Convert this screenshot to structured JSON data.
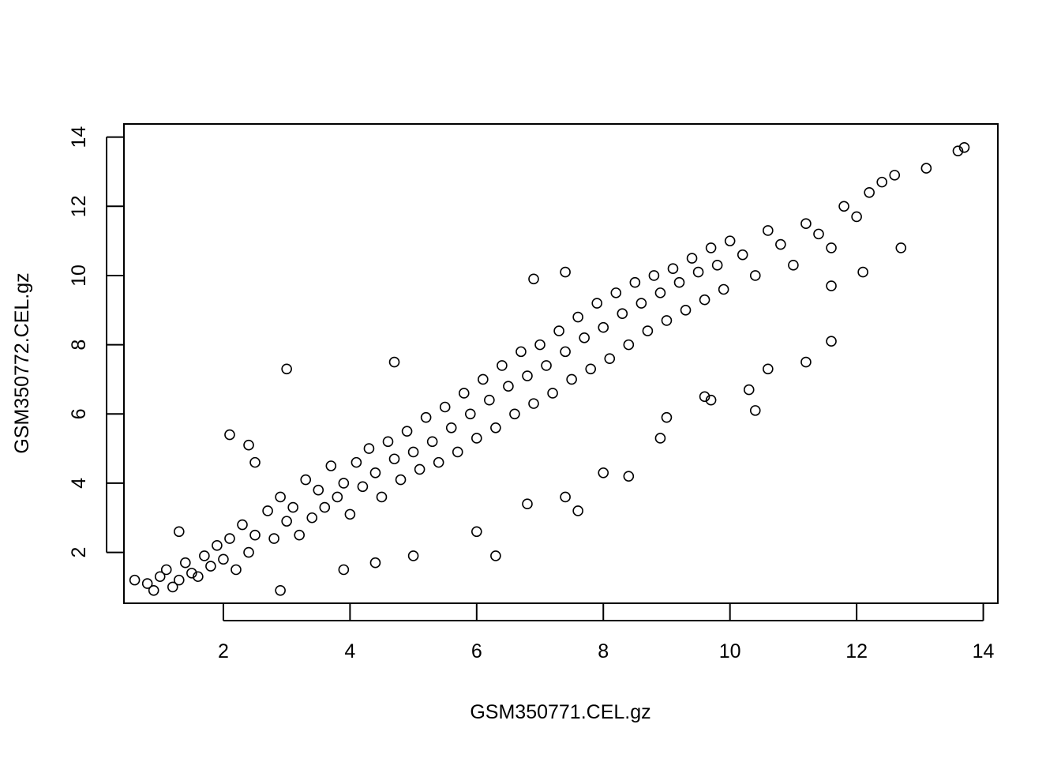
{
  "chart_data": {
    "type": "scatter",
    "title": "",
    "xlabel": "GSM350771.CEL.gz",
    "ylabel": "GSM350772.CEL.gz",
    "xlim": [
      0.43,
      14.23
    ],
    "ylim": [
      0.53,
      14.38
    ],
    "xticks": [
      2,
      4,
      6,
      8,
      10,
      12,
      14
    ],
    "yticks": [
      2,
      4,
      6,
      8,
      10,
      12,
      14
    ],
    "marker": "open-circle",
    "grid": false,
    "points_description": "dense cloud of several thousand expression values along the diagonal; listed points are representative samples",
    "points": [
      [
        0.6,
        1.2
      ],
      [
        0.8,
        1.1
      ],
      [
        0.9,
        0.9
      ],
      [
        1.0,
        1.3
      ],
      [
        1.2,
        1.0
      ],
      [
        1.1,
        1.5
      ],
      [
        1.3,
        1.2
      ],
      [
        1.4,
        1.7
      ],
      [
        1.5,
        1.4
      ],
      [
        1.6,
        1.3
      ],
      [
        1.3,
        2.6
      ],
      [
        1.7,
        1.9
      ],
      [
        1.8,
        1.6
      ],
      [
        1.9,
        2.2
      ],
      [
        2.0,
        1.8
      ],
      [
        2.1,
        2.4
      ],
      [
        2.2,
        1.5
      ],
      [
        2.3,
        2.8
      ],
      [
        2.4,
        2.0
      ],
      [
        2.5,
        2.5
      ],
      [
        2.1,
        5.4
      ],
      [
        2.4,
        5.1
      ],
      [
        2.5,
        4.6
      ],
      [
        2.7,
        3.2
      ],
      [
        2.8,
        2.4
      ],
      [
        2.9,
        3.6
      ],
      [
        3.0,
        2.9
      ],
      [
        3.1,
        3.3
      ],
      [
        3.2,
        2.5
      ],
      [
        3.3,
        4.1
      ],
      [
        3.4,
        3.0
      ],
      [
        3.5,
        3.8
      ],
      [
        3.6,
        3.3
      ],
      [
        3.7,
        4.5
      ],
      [
        3.8,
        3.6
      ],
      [
        3.9,
        4.0
      ],
      [
        4.0,
        3.1
      ],
      [
        4.1,
        4.6
      ],
      [
        4.2,
        3.9
      ],
      [
        4.3,
        5.0
      ],
      [
        4.4,
        4.3
      ],
      [
        4.5,
        3.6
      ],
      [
        4.6,
        5.2
      ],
      [
        4.7,
        4.7
      ],
      [
        4.8,
        4.1
      ],
      [
        4.9,
        5.5
      ],
      [
        5.0,
        4.9
      ],
      [
        5.1,
        4.4
      ],
      [
        5.2,
        5.9
      ],
      [
        5.3,
        5.2
      ],
      [
        5.4,
        4.6
      ],
      [
        5.5,
        6.2
      ],
      [
        5.6,
        5.6
      ],
      [
        5.7,
        4.9
      ],
      [
        5.8,
        6.6
      ],
      [
        5.9,
        6.0
      ],
      [
        6.0,
        5.3
      ],
      [
        6.1,
        7.0
      ],
      [
        6.2,
        6.4
      ],
      [
        6.3,
        5.6
      ],
      [
        6.4,
        7.4
      ],
      [
        6.5,
        6.8
      ],
      [
        6.6,
        6.0
      ],
      [
        6.7,
        7.8
      ],
      [
        6.8,
        7.1
      ],
      [
        6.9,
        6.3
      ],
      [
        7.0,
        8.0
      ],
      [
        7.1,
        7.4
      ],
      [
        7.2,
        6.6
      ],
      [
        7.3,
        8.4
      ],
      [
        7.4,
        7.8
      ],
      [
        7.5,
        7.0
      ],
      [
        7.6,
        8.8
      ],
      [
        7.7,
        8.2
      ],
      [
        7.8,
        7.3
      ],
      [
        7.9,
        9.2
      ],
      [
        8.0,
        8.5
      ],
      [
        8.1,
        7.6
      ],
      [
        8.2,
        9.5
      ],
      [
        8.3,
        8.9
      ],
      [
        8.4,
        8.0
      ],
      [
        8.5,
        9.8
      ],
      [
        8.6,
        9.2
      ],
      [
        8.7,
        8.4
      ],
      [
        8.8,
        10.0
      ],
      [
        8.9,
        9.5
      ],
      [
        9.0,
        8.7
      ],
      [
        9.1,
        10.2
      ],
      [
        9.2,
        9.8
      ],
      [
        9.3,
        9.0
      ],
      [
        9.4,
        10.5
      ],
      [
        9.5,
        10.1
      ],
      [
        9.6,
        9.3
      ],
      [
        9.7,
        10.8
      ],
      [
        9.8,
        10.3
      ],
      [
        9.9,
        9.6
      ],
      [
        10.0,
        11.0
      ],
      [
        10.2,
        10.6
      ],
      [
        10.4,
        10.0
      ],
      [
        10.6,
        11.3
      ],
      [
        10.8,
        10.9
      ],
      [
        11.0,
        10.3
      ],
      [
        11.2,
        11.5
      ],
      [
        11.4,
        11.2
      ],
      [
        11.6,
        10.8
      ],
      [
        11.8,
        12.0
      ],
      [
        12.0,
        11.7
      ],
      [
        12.2,
        12.4
      ],
      [
        12.4,
        12.7
      ],
      [
        12.6,
        12.9
      ],
      [
        13.1,
        13.1
      ],
      [
        13.6,
        13.6
      ],
      [
        13.7,
        13.7
      ],
      [
        12.7,
        10.8
      ],
      [
        12.1,
        10.1
      ],
      [
        11.6,
        9.7
      ],
      [
        11.6,
        8.1
      ],
      [
        11.2,
        7.5
      ],
      [
        10.6,
        7.3
      ],
      [
        10.4,
        6.1
      ],
      [
        9.6,
        6.5
      ],
      [
        9.0,
        5.9
      ],
      [
        8.9,
        5.3
      ],
      [
        8.4,
        4.2
      ],
      [
        8.0,
        4.3
      ],
      [
        7.6,
        3.2
      ],
      [
        7.4,
        3.6
      ],
      [
        6.8,
        3.4
      ],
      [
        6.3,
        1.9
      ],
      [
        6.0,
        2.6
      ],
      [
        5.0,
        1.9
      ],
      [
        4.4,
        1.7
      ],
      [
        3.9,
        1.5
      ],
      [
        2.9,
        0.9
      ],
      [
        3.0,
        7.3
      ],
      [
        4.7,
        7.5
      ],
      [
        6.9,
        9.9
      ],
      [
        7.4,
        10.1
      ],
      [
        9.7,
        6.4
      ],
      [
        10.3,
        6.7
      ]
    ]
  }
}
